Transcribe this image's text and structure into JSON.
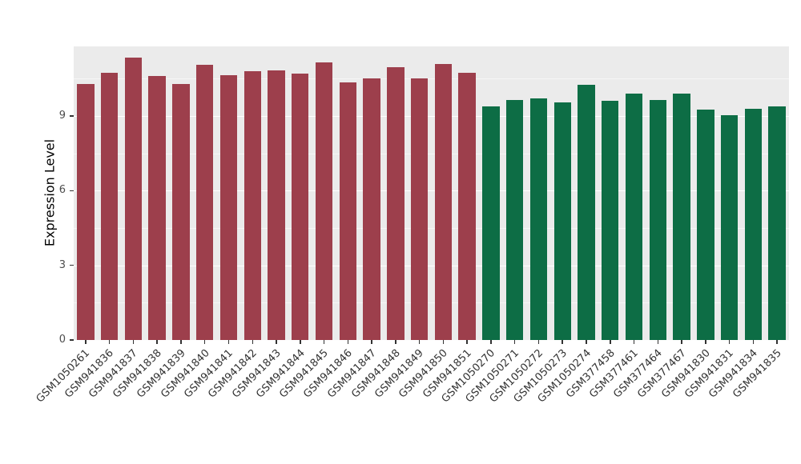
{
  "chart_data": {
    "type": "bar",
    "title": "",
    "xlabel": "",
    "ylabel": "Expression Level",
    "ylim": [
      0,
      11.8
    ],
    "yticks": [
      0,
      3,
      6,
      9
    ],
    "yticks_minor": [
      1.5,
      4.5,
      7.5,
      10.5
    ],
    "grid": "on",
    "legend": "none",
    "categories": [
      "GSM1050261",
      "GSM941836",
      "GSM941837",
      "GSM941838",
      "GSM941839",
      "GSM941840",
      "GSM941841",
      "GSM941842",
      "GSM941843",
      "GSM941844",
      "GSM941845",
      "GSM941846",
      "GSM941847",
      "GSM941848",
      "GSM941849",
      "GSM941850",
      "GSM941851",
      "GSM1050270",
      "GSM1050271",
      "GSM1050272",
      "GSM1050273",
      "GSM1050274",
      "GSM377458",
      "GSM377461",
      "GSM377464",
      "GSM377467",
      "GSM941830",
      "GSM941831",
      "GSM941834",
      "GSM941835"
    ],
    "values": [
      10.3,
      10.75,
      11.35,
      10.6,
      10.3,
      11.05,
      10.65,
      10.8,
      10.85,
      10.7,
      11.15,
      10.35,
      10.5,
      10.95,
      10.5,
      11.1,
      10.75,
      9.4,
      9.65,
      9.7,
      9.55,
      10.25,
      9.6,
      9.9,
      9.65,
      9.9,
      9.25,
      9.05,
      9.3,
      9.4
    ],
    "bar_groups": [
      "group1",
      "group1",
      "group1",
      "group1",
      "group1",
      "group1",
      "group1",
      "group1",
      "group1",
      "group1",
      "group1",
      "group1",
      "group1",
      "group1",
      "group1",
      "group1",
      "group1",
      "group2",
      "group2",
      "group2",
      "group2",
      "group2",
      "group2",
      "group2",
      "group2",
      "group2",
      "group2",
      "group2",
      "group2",
      "group2"
    ]
  },
  "colors": {
    "group1": "#9d3f4c",
    "group2": "#0d6d45",
    "panel_background": "#ebebeb",
    "gridline": "#ffffff",
    "tick_text": "#4d4d4d",
    "axis_title_text": "#000000"
  }
}
